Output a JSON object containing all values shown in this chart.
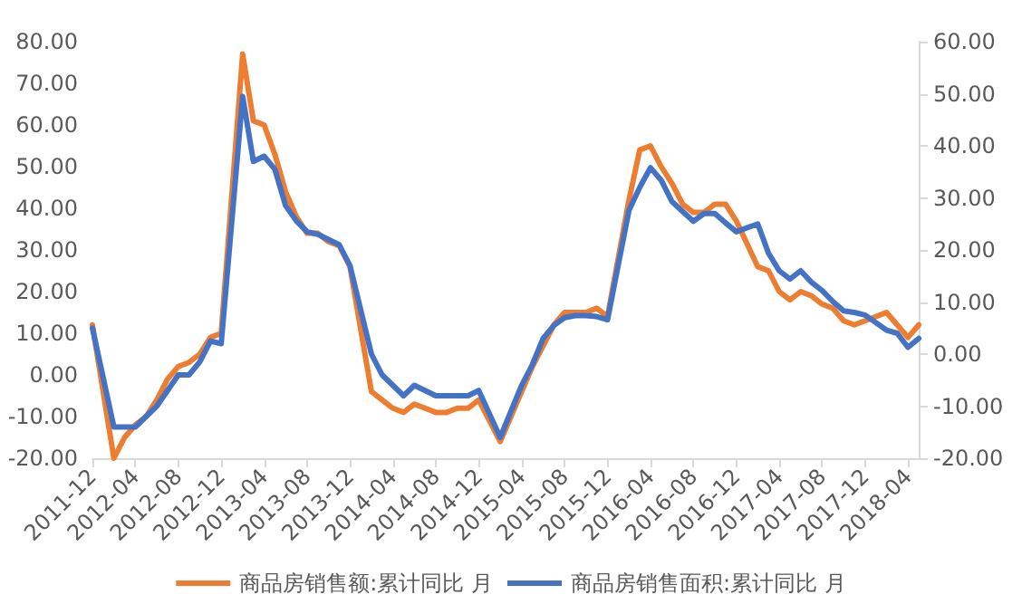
{
  "chart_data": {
    "type": "line",
    "categories": [
      "2011-12",
      null,
      null,
      null,
      "2012-04",
      null,
      null,
      null,
      "2012-08",
      null,
      null,
      null,
      "2012-12",
      null,
      null,
      null,
      "2013-04",
      null,
      null,
      null,
      "2013-08",
      null,
      null,
      null,
      "2013-12",
      null,
      null,
      null,
      "2014-04",
      null,
      null,
      null,
      "2014-08",
      null,
      null,
      null,
      "2014-12",
      null,
      null,
      null,
      "2015-04",
      null,
      null,
      null,
      "2015-08",
      null,
      null,
      null,
      "2015-12",
      null,
      null,
      null,
      "2016-04",
      null,
      null,
      null,
      "2016-08",
      null,
      null,
      null,
      "2016-12",
      null,
      null,
      null,
      "2017-04",
      null,
      null,
      null,
      "2017-08",
      null,
      null,
      null,
      "2017-12",
      null,
      null,
      null,
      "2018-04",
      null
    ],
    "series": [
      {
        "name": "商品房销售额:累计同比 月",
        "color": "#ed7d31",
        "values": [
          12,
          null,
          -20,
          -15,
          -12,
          -10,
          -6,
          -1,
          2,
          3,
          5,
          9,
          10,
          null,
          77,
          61,
          60,
          53,
          44,
          38,
          34,
          34,
          32,
          31,
          26,
          null,
          -4,
          -6,
          -8,
          -9,
          -7,
          -8,
          -9,
          -9,
          -8,
          -8,
          -6,
          null,
          -16,
          -10,
          -4,
          2,
          7,
          12,
          15,
          15,
          15,
          16,
          14,
          null,
          42,
          54,
          55,
          50,
          46,
          41,
          39,
          39,
          41,
          41,
          37,
          null,
          26,
          25,
          20,
          18,
          20,
          19,
          17,
          16,
          13,
          12,
          13,
          null,
          15,
          12,
          9,
          12
        ]
      },
      {
        "name": "商品房销售面积:累计同比 月",
        "color": "#4472c4",
        "axis": "y2",
        "values": [
          5,
          null,
          -14,
          -14,
          -14,
          -12,
          -10,
          -7,
          -4,
          -4,
          -1.5,
          2.5,
          2,
          null,
          49.5,
          37,
          38,
          35.5,
          28.5,
          25.6,
          23.5,
          23,
          22,
          21,
          17,
          null,
          0,
          -4,
          -6,
          -8,
          -6,
          -7,
          -8,
          -8,
          -8,
          -8,
          -7,
          null,
          -16,
          -11,
          -6,
          -2,
          3,
          5.5,
          7,
          7.4,
          7.4,
          7.2,
          6.6,
          null,
          27.6,
          32,
          35.8,
          33.4,
          29.3,
          27.4,
          25.5,
          27,
          27,
          25.2,
          23.5,
          null,
          25,
          19.4,
          16,
          14.4,
          16,
          13.8,
          12.2,
          10.1,
          8.3,
          8,
          7.5,
          null,
          4.6,
          4,
          1.3,
          3
        ]
      }
    ],
    "ylim": [
      -20,
      80
    ],
    "yticks": [
      {
        "value": -20,
        "label": "-20.00"
      },
      {
        "value": -10,
        "label": "-10.00"
      },
      {
        "value": 0,
        "label": "0.00"
      },
      {
        "value": 10,
        "label": "10.00"
      },
      {
        "value": 20,
        "label": "20.00"
      },
      {
        "value": 30,
        "label": "30.00"
      },
      {
        "value": 40,
        "label": "40.00"
      },
      {
        "value": 50,
        "label": "50.00"
      },
      {
        "value": 60,
        "label": "60.00"
      },
      {
        "value": 70,
        "label": "70.00"
      },
      {
        "value": 80,
        "label": "80.00"
      }
    ],
    "y2lim": [
      -20,
      60
    ],
    "y2ticks": [
      {
        "value": -20,
        "label": "-20.00"
      },
      {
        "value": -10,
        "label": "-10.00"
      },
      {
        "value": 0,
        "label": "0.00"
      },
      {
        "value": 10,
        "label": "10.00"
      },
      {
        "value": 20,
        "label": "20.00"
      },
      {
        "value": 30,
        "label": "30.00"
      },
      {
        "value": 40,
        "label": "40.00"
      },
      {
        "value": 50,
        "label": "50.00"
      },
      {
        "value": 60,
        "label": "60.00"
      }
    ],
    "grid": false,
    "legend": "bottom",
    "marker": "none",
    "line_style": "solid"
  }
}
